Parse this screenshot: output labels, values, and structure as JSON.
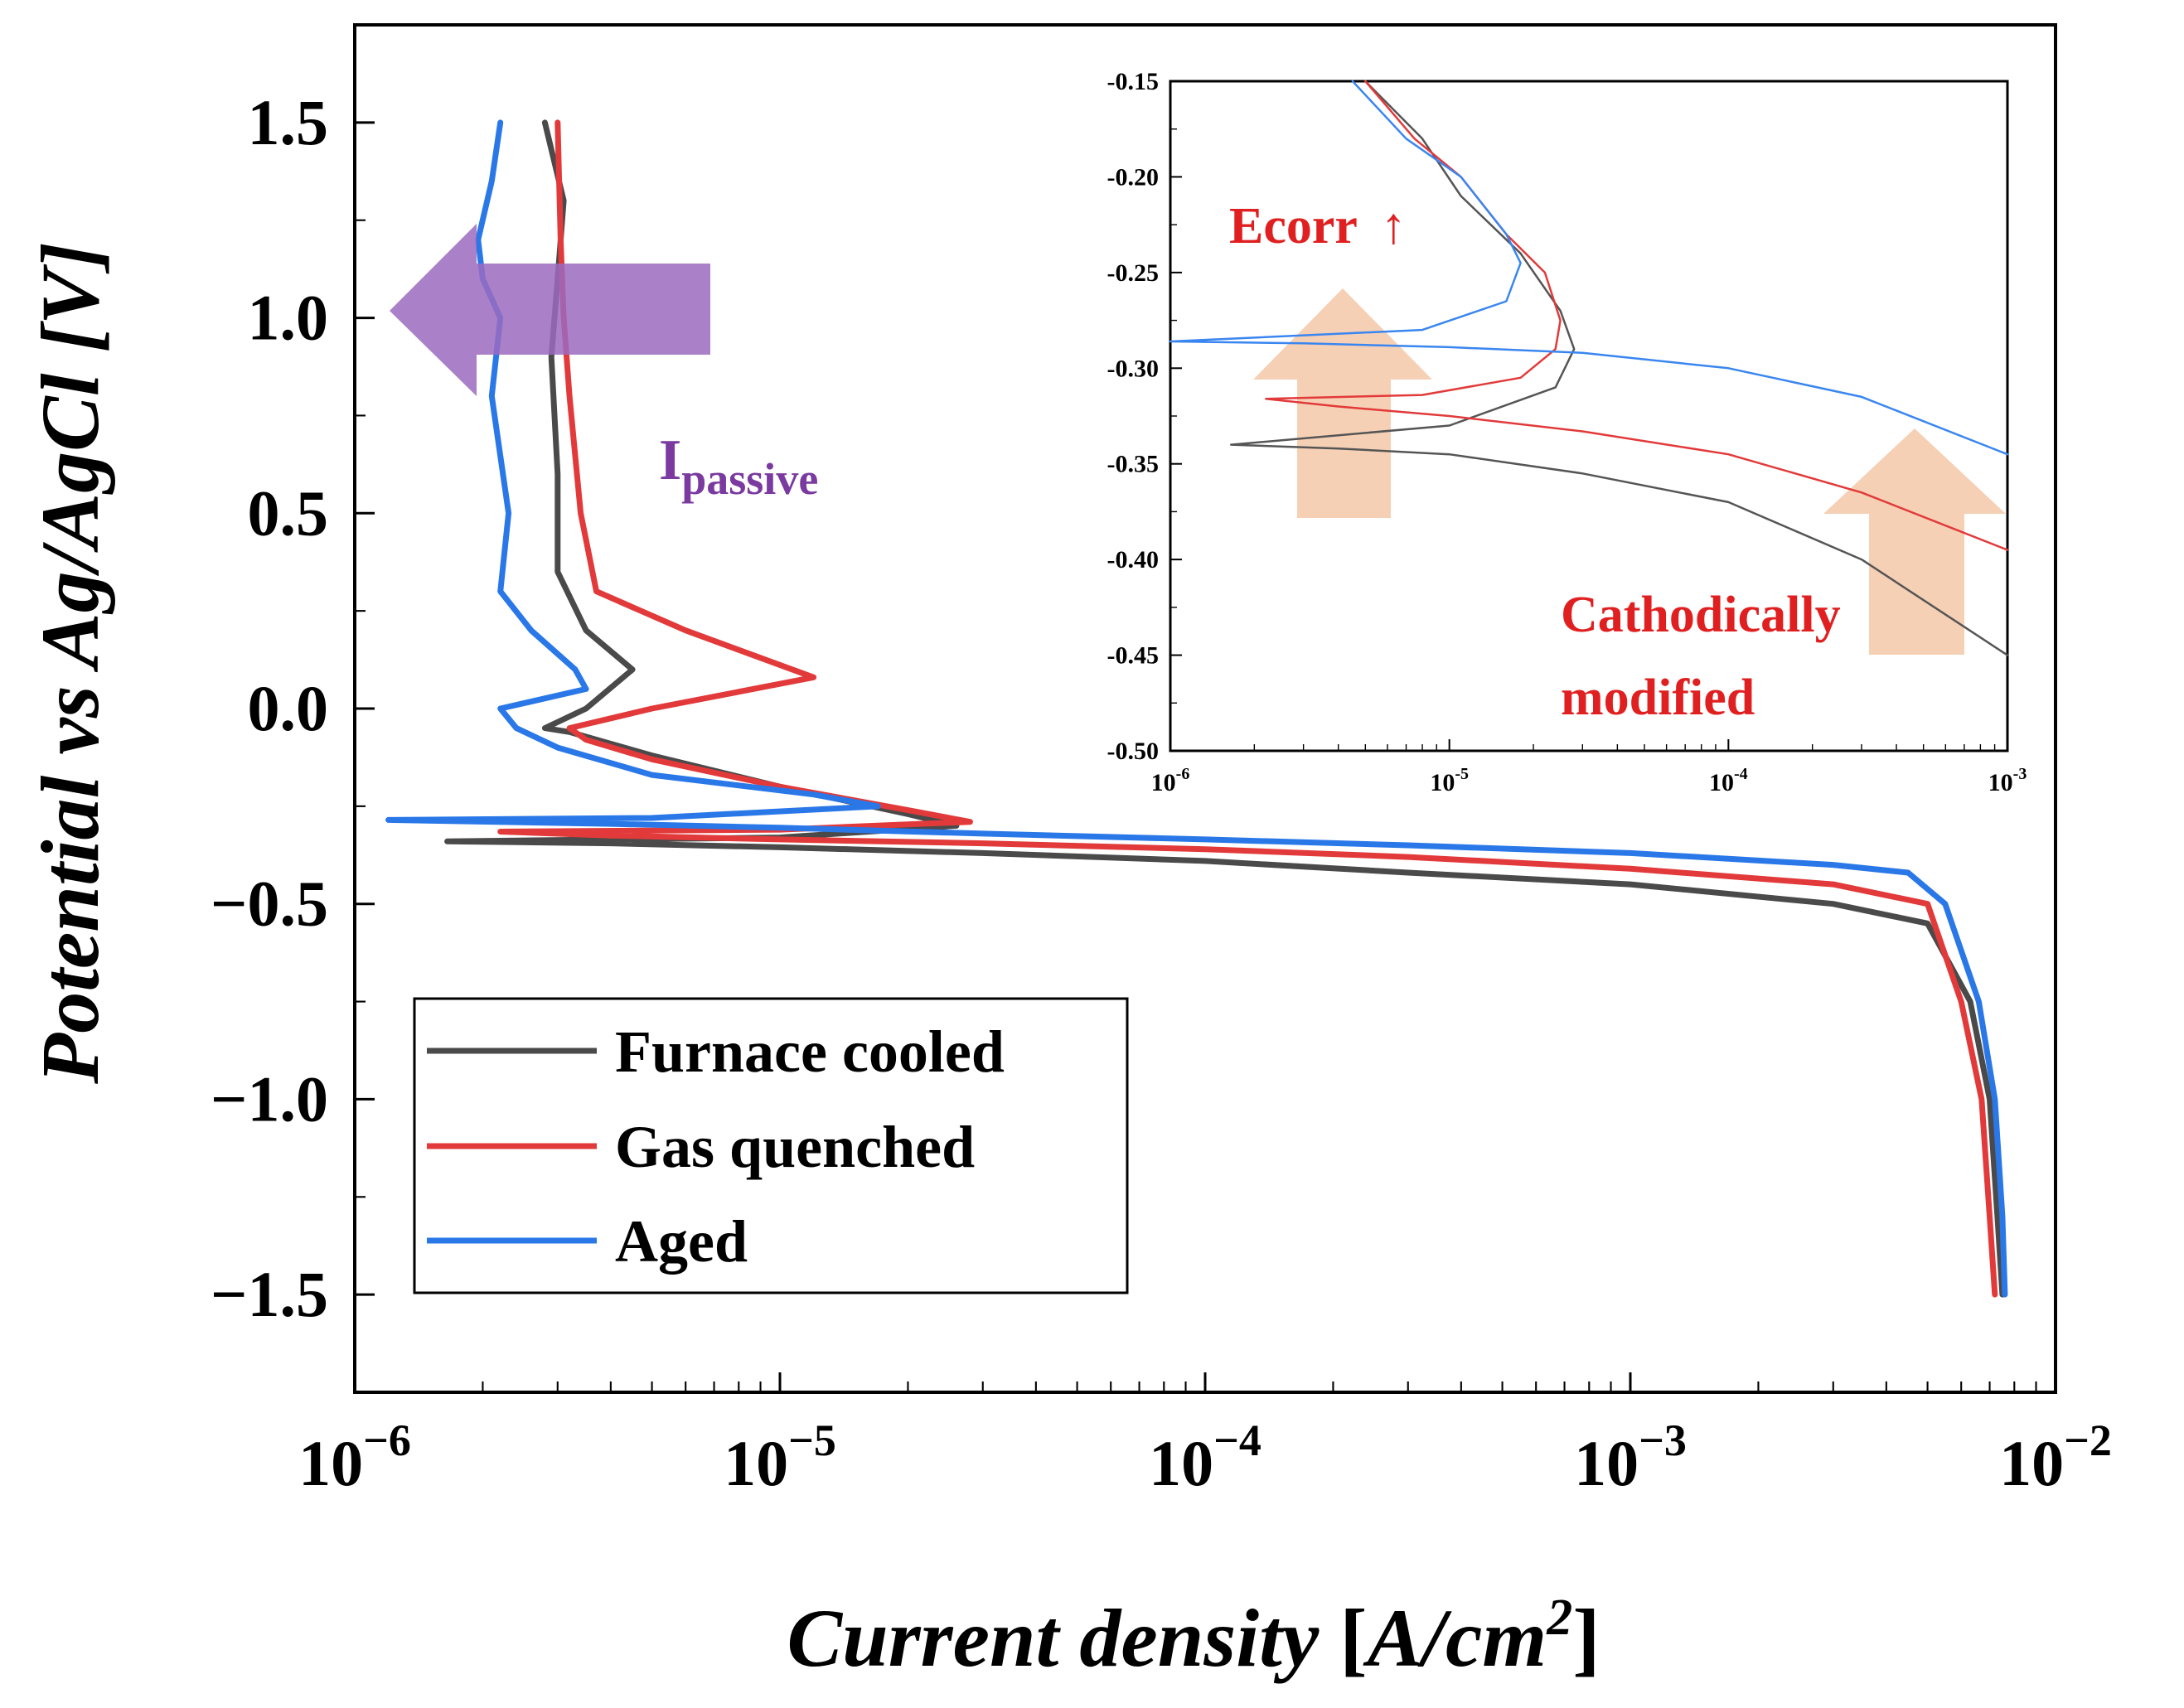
{
  "chart_data": [
    {
      "id": "main",
      "type": "line",
      "title": "",
      "xlabel": "Current density [A/cm2]",
      "xlabel_main": "Current density ",
      "xlabel_bracket_open": "[",
      "xlabel_unit": "A/cm",
      "xlabel_sup": "2",
      "xlabel_bracket_close": "]",
      "ylabel": "Potential vs Ag/AgCl [V]",
      "xscale": "log",
      "xlim": [
        1e-06,
        0.01
      ],
      "ylim": [
        -1.75,
        1.75
      ],
      "x_ticks": [
        {
          "base": "10",
          "exp": "−6"
        },
        {
          "base": "10",
          "exp": "−5"
        },
        {
          "base": "10",
          "exp": "−4"
        },
        {
          "base": "10",
          "exp": "−3"
        },
        {
          "base": "10",
          "exp": "−2"
        }
      ],
      "y_ticks": [
        {
          "value": 1.5,
          "label": "1.5"
        },
        {
          "value": 1.0,
          "label": "1.0"
        },
        {
          "value": 0.5,
          "label": "0.5"
        },
        {
          "value": 0.0,
          "label": "0.0"
        },
        {
          "value": -0.5,
          "label": "−0.5"
        },
        {
          "value": -1.0,
          "label": "−1.0"
        },
        {
          "value": -1.5,
          "label": "−1.5"
        }
      ],
      "legend_position": "bottom-left",
      "series": [
        {
          "name": "Furnace cooled",
          "color": "#4a4a4a",
          "x": [
            0.0075,
            0.0073,
            0.007,
            0.0063,
            0.005,
            0.003,
            0.001,
            0.0003,
            0.0001,
            3e-05,
            1e-05,
            4e-06,
            1.65e-06,
            1e-05,
            2.6e-05,
            2e-05,
            1e-05,
            5e-06,
            3.2e-06,
            2.8e-06,
            3.5e-06,
            4.5e-06,
            3.5e-06,
            3e-06,
            3e-06,
            2.9e-06,
            2.95e-06,
            3e-06,
            3.1e-06,
            2.8e-06
          ],
          "y": [
            -1.5,
            -1.3,
            -1.0,
            -0.75,
            -0.55,
            -0.5,
            -0.45,
            -0.42,
            -0.39,
            -0.37,
            -0.355,
            -0.345,
            -0.34,
            -0.33,
            -0.3,
            -0.27,
            -0.2,
            -0.12,
            -0.06,
            -0.05,
            0.0,
            0.1,
            0.2,
            0.35,
            0.6,
            0.9,
            1.0,
            1.1,
            1.3,
            1.5
          ]
        },
        {
          "name": "Gas quenched",
          "color": "#e23a3a",
          "x": [
            0.0072,
            0.007,
            0.0067,
            0.006,
            0.005,
            0.003,
            0.001,
            0.0003,
            0.0001,
            3e-05,
            1e-05,
            4e-06,
            2.2e-06,
            1e-05,
            2.8e-05,
            2e-05,
            1e-05,
            5e-06,
            3.5e-06,
            3.2e-06,
            5e-06,
            1.2e-05,
            6e-06,
            3.7e-06,
            3.4e-06,
            3.2e-06,
            3.1e-06,
            3.05e-06,
            3e-06
          ],
          "y": [
            -1.5,
            -1.3,
            -1.0,
            -0.75,
            -0.5,
            -0.45,
            -0.41,
            -0.38,
            -0.36,
            -0.345,
            -0.335,
            -0.325,
            -0.315,
            -0.31,
            -0.29,
            -0.26,
            -0.2,
            -0.13,
            -0.08,
            -0.05,
            0.0,
            0.08,
            0.2,
            0.3,
            0.5,
            0.8,
            1.0,
            1.2,
            1.5
          ]
        },
        {
          "name": "Aged",
          "color": "#2a78e8",
          "x": [
            0.0076,
            0.0075,
            0.0072,
            0.0066,
            0.0055,
            0.0045,
            0.003,
            0.001,
            0.0003,
            0.0001,
            3e-05,
            1e-05,
            4e-06,
            1.2e-06,
            5e-06,
            1.7e-05,
            1.2e-05,
            5e-06,
            3e-06,
            2.4e-06,
            2.2e-06,
            3.5e-06,
            3.3e-06,
            2.6e-06,
            2.2e-06,
            2.3e-06,
            2.1e-06,
            2.2e-06,
            2e-06,
            1.95e-06,
            2.1e-06,
            2.2e-06
          ],
          "y": [
            -1.5,
            -1.3,
            -1.0,
            -0.75,
            -0.5,
            -0.42,
            -0.4,
            -0.37,
            -0.35,
            -0.335,
            -0.32,
            -0.305,
            -0.295,
            -0.285,
            -0.28,
            -0.25,
            -0.22,
            -0.17,
            -0.1,
            -0.05,
            0.0,
            0.05,
            0.1,
            0.2,
            0.3,
            0.5,
            0.8,
            1.0,
            1.1,
            1.2,
            1.35,
            1.5
          ]
        }
      ],
      "annotations": {
        "ipassive_main": "I",
        "ipassive_sub": "passive",
        "arrow_color": "#9b6bbf"
      }
    },
    {
      "id": "inset",
      "type": "line",
      "title": "",
      "xlabel": "",
      "ylabel": "",
      "xscale": "log",
      "xlim": [
        1e-06,
        0.001
      ],
      "ylim": [
        -0.5,
        -0.15
      ],
      "x_ticks": [
        {
          "base": "10",
          "exp": "-6"
        },
        {
          "base": "10",
          "exp": "-5"
        },
        {
          "base": "10",
          "exp": "-4"
        },
        {
          "base": "10",
          "exp": "-3"
        }
      ],
      "y_ticks": [
        {
          "value": -0.15,
          "label": "-0.15"
        },
        {
          "value": -0.2,
          "label": "-0.20"
        },
        {
          "value": -0.25,
          "label": "-0.25"
        },
        {
          "value": -0.3,
          "label": "-0.30"
        },
        {
          "value": -0.35,
          "label": "-0.35"
        },
        {
          "value": -0.4,
          "label": "-0.40"
        },
        {
          "value": -0.45,
          "label": "-0.45"
        },
        {
          "value": -0.5,
          "label": "-0.50"
        }
      ],
      "series": [
        {
          "name": "Furnace cooled",
          "color": "#555555",
          "x": [
            0.001,
            0.0003,
            0.0001,
            3e-05,
            1e-05,
            4e-06,
            1.65e-06,
            1e-05,
            2.4e-05,
            2.8e-05,
            2.5e-05,
            1.8e-05,
            1.1e-05,
            8e-06,
            5e-06
          ],
          "y": [
            -0.45,
            -0.4,
            -0.37,
            -0.355,
            -0.345,
            -0.342,
            -0.34,
            -0.33,
            -0.31,
            -0.29,
            -0.27,
            -0.24,
            -0.21,
            -0.18,
            -0.15
          ]
        },
        {
          "name": "Gas quenched",
          "color": "#e23a3a",
          "x": [
            0.001,
            0.0003,
            0.0001,
            3e-05,
            1e-05,
            4e-06,
            2.2e-06,
            8e-06,
            1.8e-05,
            2.4e-05,
            2.5e-05,
            2.2e-05,
            1.6e-05,
            1.1e-05,
            7.5e-06,
            5e-06
          ],
          "y": [
            -0.395,
            -0.365,
            -0.345,
            -0.333,
            -0.325,
            -0.32,
            -0.316,
            -0.314,
            -0.305,
            -0.29,
            -0.275,
            -0.25,
            -0.23,
            -0.2,
            -0.18,
            -0.15
          ]
        },
        {
          "name": "Aged",
          "color": "#3a86f0",
          "x": [
            0.001,
            0.0003,
            0.0001,
            3e-05,
            1e-05,
            3e-06,
            1e-06,
            8e-06,
            1.6e-05,
            1.8e-05,
            1.6e-05,
            1.1e-05,
            7e-06,
            4.5e-06
          ],
          "y": [
            -0.345,
            -0.315,
            -0.3,
            -0.292,
            -0.289,
            -0.287,
            -0.286,
            -0.28,
            -0.265,
            -0.245,
            -0.23,
            -0.2,
            -0.18,
            -0.15
          ]
        }
      ],
      "annotations": {
        "ecorr_label": "Ecorr",
        "ecorr_arrow": "↑",
        "cathodic_line1": "Cathodically",
        "cathodic_line2": "modified",
        "peach_arrow_color": "#f5c8a8"
      }
    }
  ]
}
